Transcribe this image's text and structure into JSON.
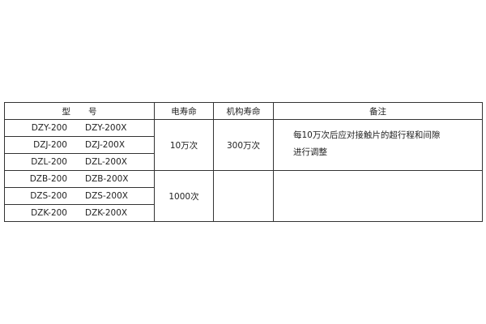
{
  "table": {
    "headers": {
      "model": [
        "型",
        "号"
      ],
      "electrical_life": "电寿命",
      "mechanical_life": "机构寿命",
      "remarks": "备注"
    },
    "rows": [
      {
        "model_a": "DZY-200",
        "model_b": "DZY-200X"
      },
      {
        "model_a": "DZJ-200",
        "model_b": "DZJ-200X"
      },
      {
        "model_a": "DZL-200",
        "model_b": "DZL-200X"
      },
      {
        "model_a": "DZB-200",
        "model_b": "DZB-200X"
      },
      {
        "model_a": "DZS-200",
        "model_b": "DZS-200X"
      },
      {
        "model_a": "DZK-200",
        "model_b": "DZK-200X"
      }
    ],
    "groups": [
      {
        "electrical_life": "10万次",
        "mechanical_life": "300万次",
        "remarks": [
          "每10万次后应对接触片的超行程和间隙",
          "进行调整"
        ]
      },
      {
        "electrical_life": "1000次",
        "mechanical_life": "",
        "remarks": []
      }
    ]
  }
}
